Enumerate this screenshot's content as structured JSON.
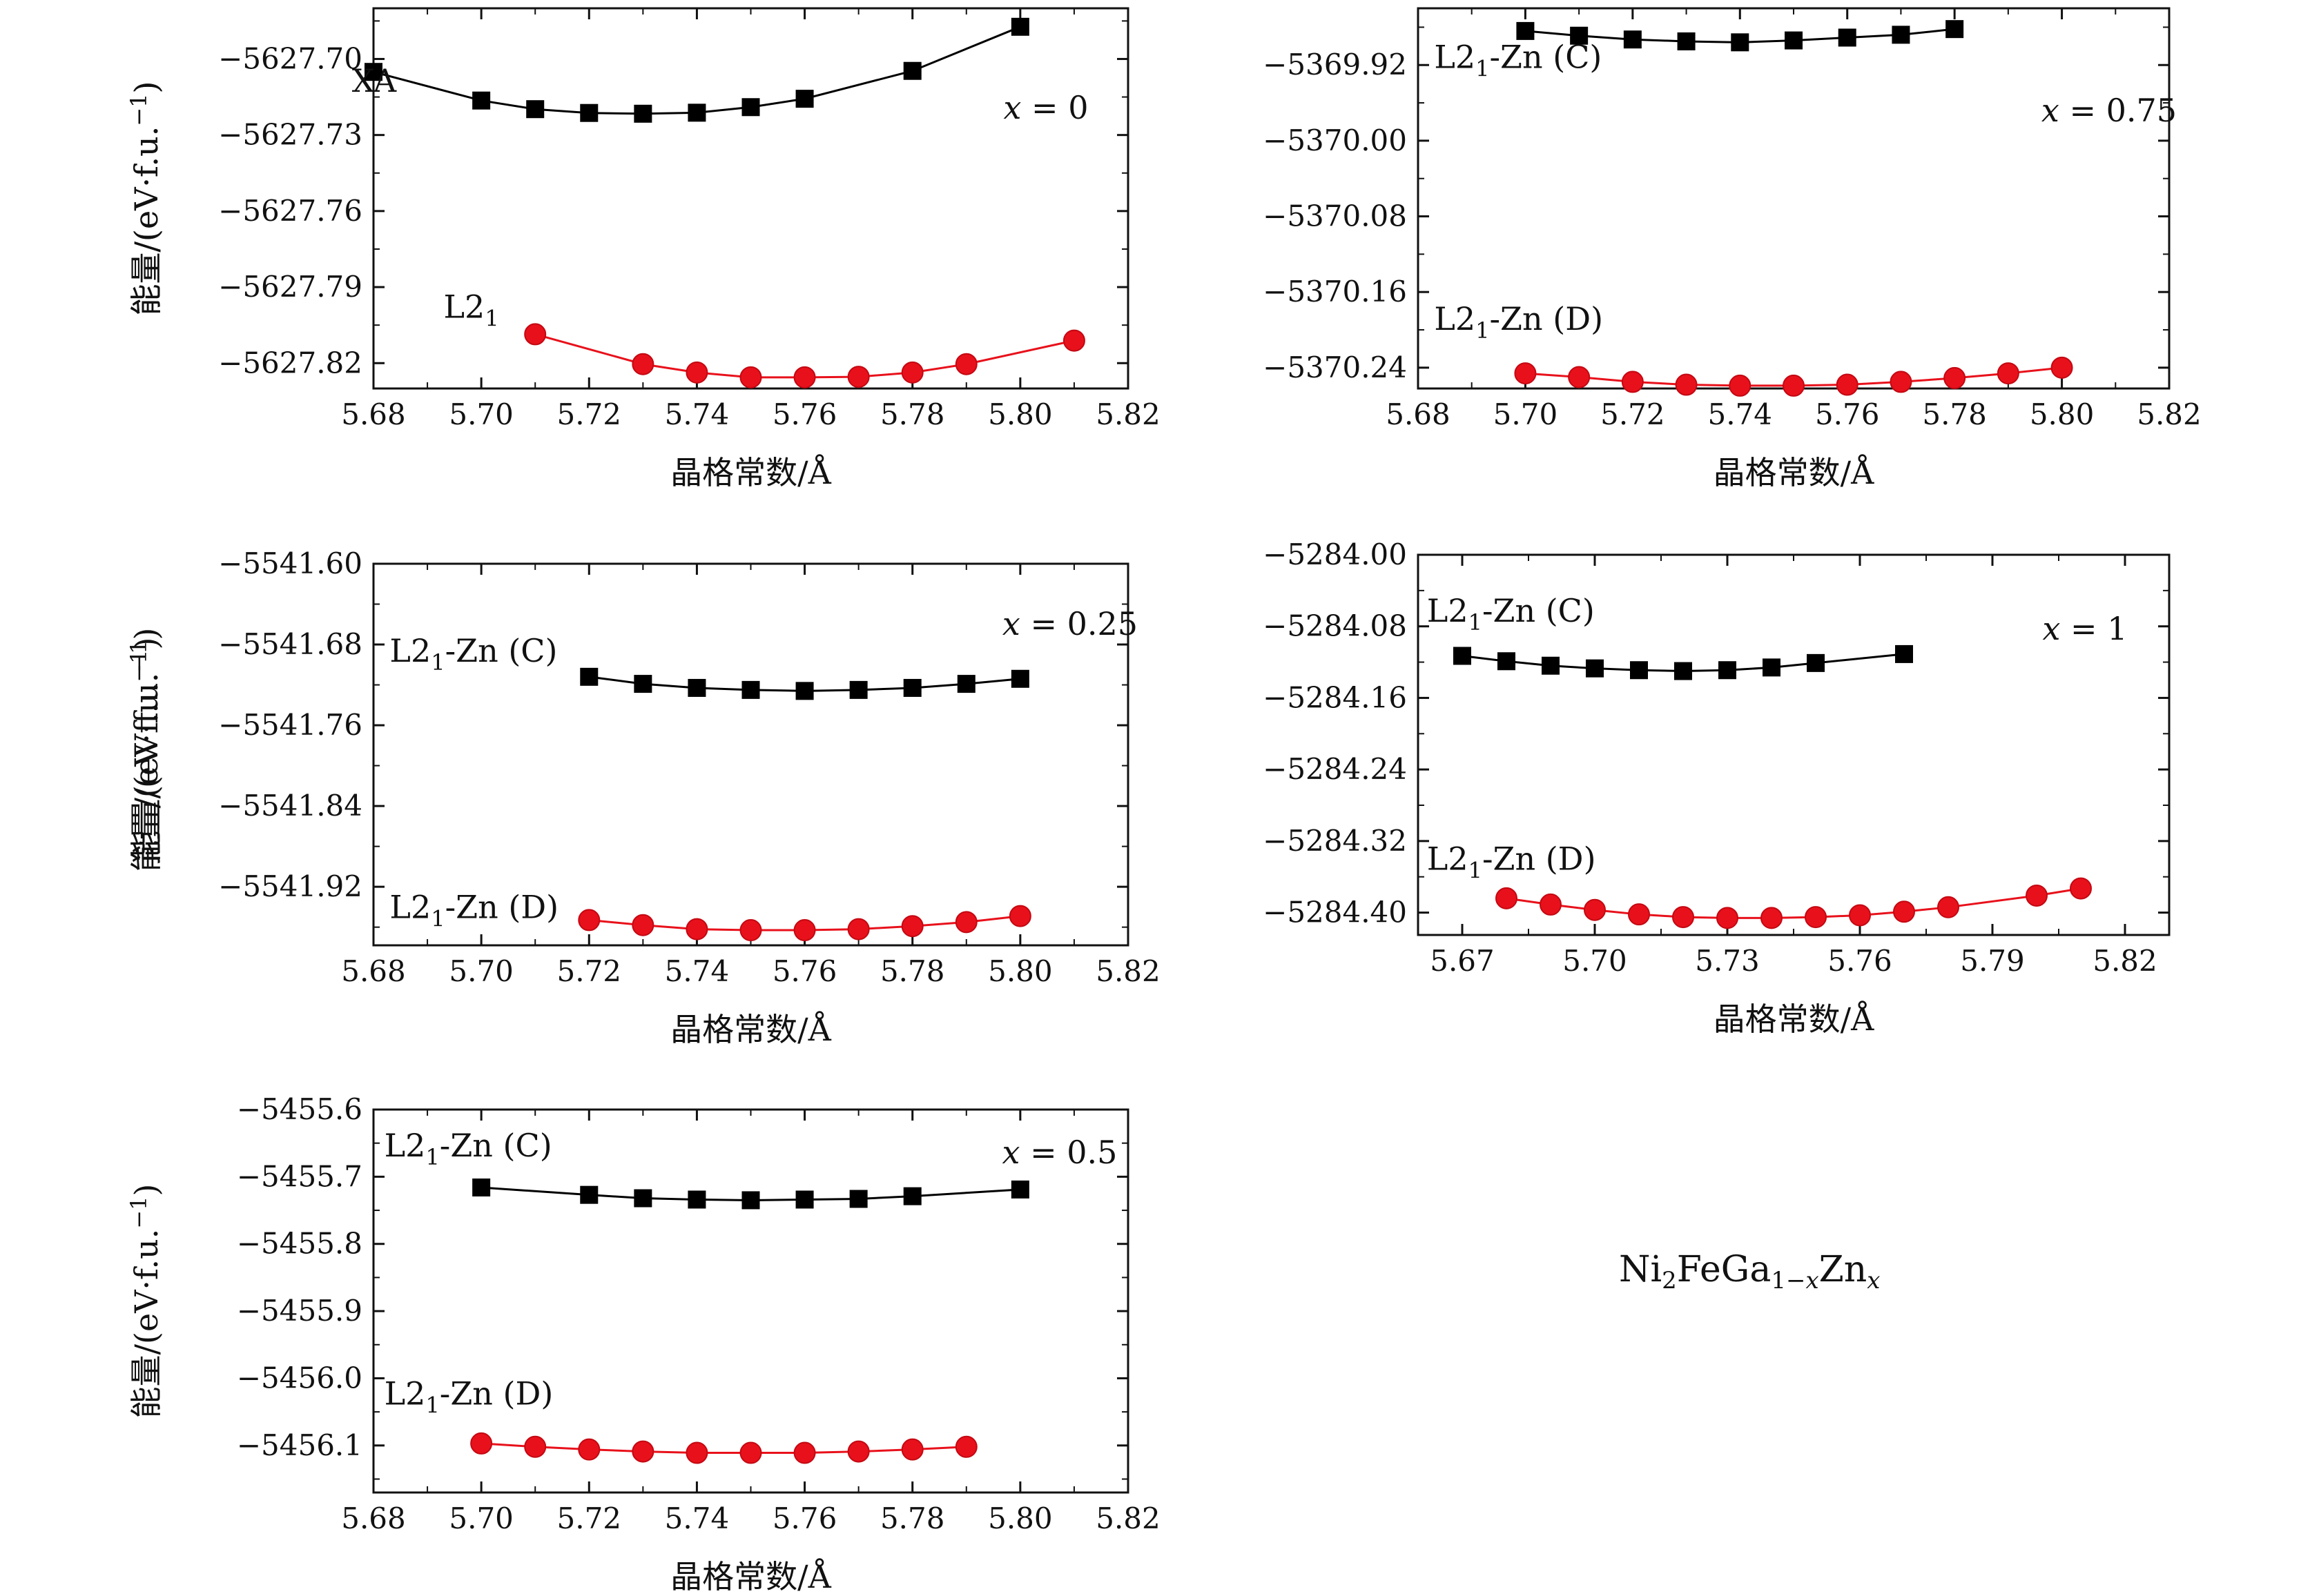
{
  "figure": {
    "formula": {
      "base": "Ni",
      "s1": "2",
      "mid": "FeGa",
      "s2a": "1",
      "s2b": "−",
      "s2c": "x",
      "tail": "Zn",
      "s3": "x"
    }
  },
  "colors": {
    "series_black": "#000000",
    "series_red": "#e8111b",
    "marker_red_edge": "#c40812",
    "axis": "#111111"
  },
  "chart_data": [
    {
      "type": "line",
      "panel_annotation": "x = 0",
      "xlabel": "晶格常数/Å",
      "ylabel": "能量/(eV·f.u.⁻¹)",
      "xlim": [
        5.68,
        5.82
      ],
      "ylim": [
        -5627.83,
        -5627.68
      ],
      "xticks": [
        5.68,
        5.7,
        5.72,
        5.74,
        5.76,
        5.78,
        5.8,
        5.82
      ],
      "xtick_labels": [
        "5.68",
        "5.70",
        "5.72",
        "5.74",
        "5.76",
        "5.78",
        "5.80",
        "5.82"
      ],
      "yticks": [
        -5627.7,
        -5627.73,
        -5627.76,
        -5627.79,
        -5627.82
      ],
      "ytick_labels": [
        "−5627.70",
        "−5627.73",
        "−5627.76",
        "−5627.79",
        "−5627.82"
      ],
      "series": [
        {
          "name": "XA",
          "marker": "square",
          "color": "#000000",
          "label_at": [
            5.676,
            -5627.7129
          ],
          "x": [
            5.68,
            5.7,
            5.71,
            5.72,
            5.73,
            5.74,
            5.75,
            5.76,
            5.78,
            5.8
          ],
          "y": [
            -5627.7051,
            -5627.7164,
            -5627.7198,
            -5627.7213,
            -5627.7216,
            -5627.7212,
            -5627.719,
            -5627.7157,
            -5627.7047,
            -5627.6873
          ]
        },
        {
          "name": "L2₁",
          "marker": "circle",
          "color": "#e8111b",
          "label_at": [
            5.693,
            -5627.8021
          ],
          "x": [
            5.71,
            5.73,
            5.74,
            5.75,
            5.76,
            5.77,
            5.78,
            5.79,
            5.81
          ],
          "y": [
            -5627.8086,
            -5627.8204,
            -5627.8237,
            -5627.8256,
            -5627.8256,
            -5627.8254,
            -5627.8237,
            -5627.8204,
            -5627.8111
          ]
        }
      ]
    },
    {
      "type": "line",
      "panel_annotation": "x = 0.75",
      "xlabel": "晶格常数/Å",
      "ylabel": "能量/(eV·f.u.⁻¹)",
      "xlim": [
        5.68,
        5.82
      ],
      "ylim": [
        -5370.262,
        -5369.86
      ],
      "xticks": [
        5.68,
        5.7,
        5.72,
        5.74,
        5.76,
        5.78,
        5.8,
        5.82
      ],
      "xtick_labels": [
        "5.68",
        "5.70",
        "5.72",
        "5.74",
        "5.76",
        "5.78",
        "5.80",
        "5.82"
      ],
      "yticks": [
        -5369.92,
        -5370.0,
        -5370.08,
        -5370.16,
        -5370.24
      ],
      "ytick_labels": [
        "−5369.92",
        "−5370.00",
        "−5370.08",
        "−5370.16",
        "−5370.24"
      ],
      "series": [
        {
          "name": "L2₁-Zn (C)",
          "marker": "square",
          "color": "#000000",
          "label_at": [
            5.683,
            -5369.923
          ],
          "x": [
            5.7,
            5.71,
            5.72,
            5.73,
            5.74,
            5.75,
            5.76,
            5.77,
            5.78
          ],
          "y": [
            -5369.884,
            -5369.889,
            -5369.893,
            -5369.895,
            -5369.896,
            -5369.894,
            -5369.891,
            -5369.888,
            -5369.882
          ]
        },
        {
          "name": "L2₁-Zn (D)",
          "marker": "circle",
          "color": "#e8111b",
          "label_at": [
            5.683,
            -5370.2
          ],
          "x": [
            5.7,
            5.71,
            5.72,
            5.73,
            5.74,
            5.75,
            5.76,
            5.77,
            5.78,
            5.79,
            5.8
          ],
          "y": [
            -5370.246,
            -5370.25,
            -5370.255,
            -5370.258,
            -5370.259,
            -5370.259,
            -5370.258,
            -5370.255,
            -5370.251,
            -5370.246,
            -5370.24
          ]
        }
      ]
    },
    {
      "type": "line",
      "panel_annotation": "x = 0.25",
      "xlabel": "晶格常数/Å",
      "ylabel": "能量/(eV·f.u.⁻¹)",
      "xlim": [
        5.68,
        5.82
      ],
      "ylim": [
        -5541.978,
        -5541.6
      ],
      "xticks": [
        5.68,
        5.7,
        5.72,
        5.74,
        5.76,
        5.78,
        5.8,
        5.82
      ],
      "xtick_labels": [
        "5.68",
        "5.70",
        "5.72",
        "5.74",
        "5.76",
        "5.78",
        "5.80",
        "5.82"
      ],
      "yticks": [
        -5541.6,
        -5541.68,
        -5541.76,
        -5541.84,
        -5541.92
      ],
      "ytick_labels": [
        "−5541.60",
        "−5541.68",
        "−5541.76",
        "−5541.84",
        "−5541.92"
      ],
      "series": [
        {
          "name": "L2₁-Zn (C)",
          "marker": "square",
          "color": "#000000",
          "label_at": [
            5.683,
            -5541.697
          ],
          "x": [
            5.72,
            5.73,
            5.74,
            5.75,
            5.76,
            5.77,
            5.78,
            5.79,
            5.8
          ],
          "y": [
            -5541.712,
            -5541.719,
            -5541.723,
            -5541.725,
            -5541.726,
            -5541.725,
            -5541.723,
            -5541.719,
            -5541.714
          ]
        },
        {
          "name": "L2₁-Zn (D)",
          "marker": "circle",
          "color": "#e8111b",
          "label_at": [
            5.683,
            -5541.951
          ],
          "x": [
            5.72,
            5.73,
            5.74,
            5.75,
            5.76,
            5.77,
            5.78,
            5.79,
            5.8
          ],
          "y": [
            -5541.953,
            -5541.958,
            -5541.962,
            -5541.963,
            -5541.963,
            -5541.962,
            -5541.959,
            -5541.955,
            -5541.949
          ]
        }
      ]
    },
    {
      "type": "line",
      "panel_annotation": "x = 1",
      "xlabel": "晶格常数/Å",
      "ylabel": "能量/(eV·f.u.⁻¹)",
      "xlim": [
        5.66,
        5.83
      ],
      "ylim": [
        -5284.425,
        -5284.0
      ],
      "xticks": [
        5.67,
        5.7,
        5.73,
        5.76,
        5.79,
        5.82
      ],
      "xtick_labels": [
        "5.67",
        "5.70",
        "5.73",
        "5.76",
        "5.79",
        "5.82"
      ],
      "yticks": [
        -5284.0,
        -5284.08,
        -5284.16,
        -5284.24,
        -5284.32,
        -5284.4
      ],
      "ytick_labels": [
        "−5284.00",
        "−5284.08",
        "−5284.16",
        "−5284.24",
        "−5284.32",
        "−5284.40"
      ],
      "series": [
        {
          "name": "L2₁-Zn (C)",
          "marker": "square",
          "color": "#000000",
          "label_at": [
            5.662,
            -5284.075
          ],
          "x": [
            5.67,
            5.68,
            5.69,
            5.7,
            5.71,
            5.72,
            5.73,
            5.74,
            5.75,
            5.77
          ],
          "y": [
            -5284.113,
            -5284.119,
            -5284.124,
            -5284.127,
            -5284.129,
            -5284.13,
            -5284.129,
            -5284.126,
            -5284.121,
            -5284.111
          ]
        },
        {
          "name": "L2₁-Zn (D)",
          "marker": "circle",
          "color": "#e8111b",
          "label_at": [
            5.662,
            -5284.352
          ],
          "x": [
            5.68,
            5.69,
            5.7,
            5.71,
            5.72,
            5.73,
            5.74,
            5.75,
            5.76,
            5.77,
            5.78,
            5.8,
            5.81
          ],
          "y": [
            -5284.384,
            -5284.391,
            -5284.397,
            -5284.402,
            -5284.405,
            -5284.406,
            -5284.406,
            -5284.405,
            -5284.403,
            -5284.399,
            -5284.394,
            -5284.381,
            -5284.373
          ]
        }
      ]
    },
    {
      "type": "line",
      "panel_annotation": "x = 0.5",
      "xlabel": "晶格常数/Å",
      "ylabel": "能量/(eV·f.u.⁻¹)",
      "xlim": [
        5.68,
        5.82
      ],
      "ylim": [
        -5456.17,
        -5455.6
      ],
      "xticks": [
        5.68,
        5.7,
        5.72,
        5.74,
        5.76,
        5.78,
        5.8,
        5.82
      ],
      "xtick_labels": [
        "5.68",
        "5.70",
        "5.72",
        "5.74",
        "5.76",
        "5.78",
        "5.80",
        "5.82"
      ],
      "yticks": [
        -5455.6,
        -5455.7,
        -5455.8,
        -5455.9,
        -5456.0,
        -5456.1
      ],
      "ytick_labels": [
        "−5455.6",
        "−5455.7",
        "−5455.8",
        "−5455.9",
        "−5456.0",
        "−5456.1"
      ],
      "series": [
        {
          "name": "L2₁-Zn (C)",
          "marker": "square",
          "color": "#000000",
          "label_at": [
            5.682,
            -5455.67
          ],
          "x": [
            5.7,
            5.72,
            5.73,
            5.74,
            5.75,
            5.76,
            5.77,
            5.78,
            5.8
          ],
          "y": [
            -5455.716,
            -5455.727,
            -5455.732,
            -5455.734,
            -5455.735,
            -5455.734,
            -5455.733,
            -5455.729,
            -5455.719
          ]
        },
        {
          "name": "L2₁-Zn (D)",
          "marker": "circle",
          "color": "#e8111b",
          "label_at": [
            5.682,
            -5456.039
          ],
          "x": [
            5.7,
            5.71,
            5.72,
            5.73,
            5.74,
            5.75,
            5.76,
            5.77,
            5.78,
            5.79
          ],
          "y": [
            -5456.097,
            -5456.102,
            -5456.106,
            -5456.109,
            -5456.111,
            -5456.111,
            -5456.111,
            -5456.109,
            -5456.106,
            -5456.102
          ]
        }
      ]
    }
  ]
}
